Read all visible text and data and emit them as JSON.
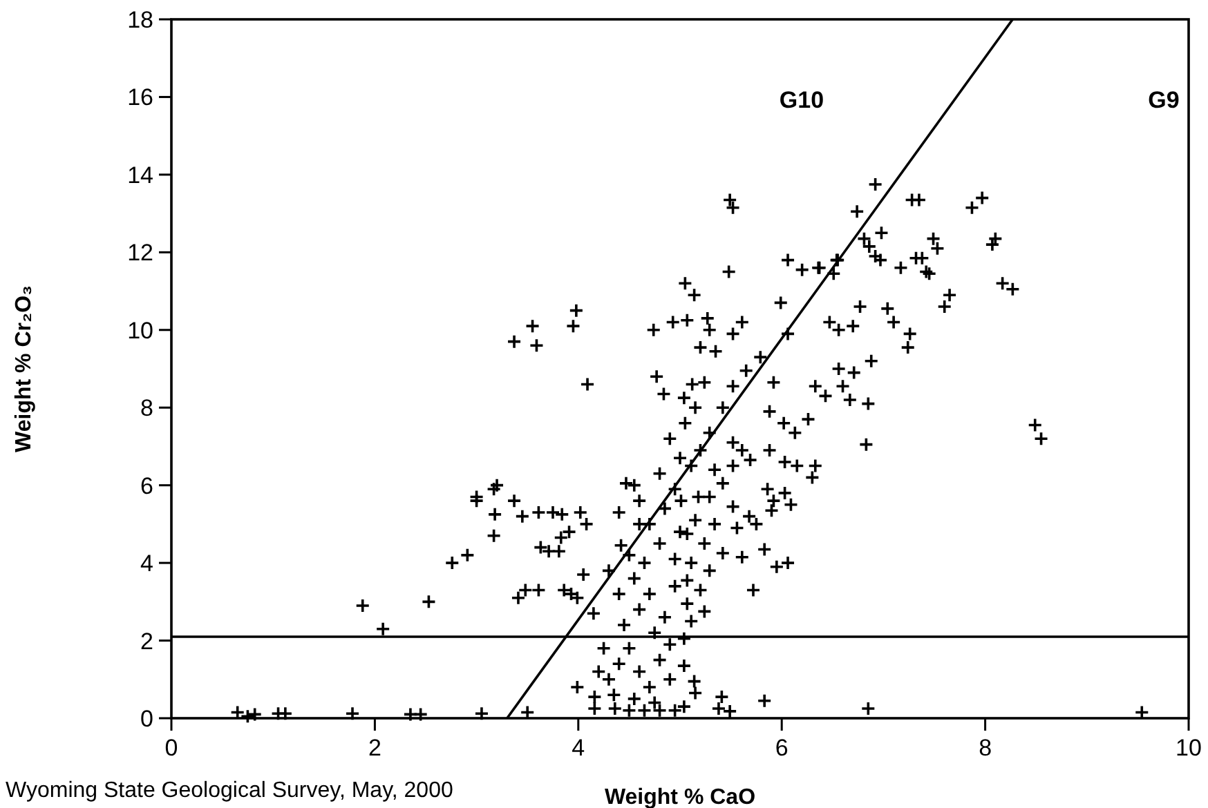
{
  "chart_data": {
    "type": "scatter",
    "xlabel": "Weight % CaO",
    "ylabel": "Weight % Cr₂O₃",
    "xlim": [
      0,
      10
    ],
    "ylim": [
      0,
      18
    ],
    "xticks": [
      0,
      2,
      4,
      6,
      8,
      10
    ],
    "yticks": [
      0,
      2,
      4,
      6,
      8,
      10,
      12,
      14,
      16,
      18
    ],
    "grid": false,
    "marker": "cross",
    "series": [
      {
        "color": "#000000",
        "x": [
          0.65,
          0.75,
          0.82,
          1.05,
          1.12,
          1.78,
          2.35,
          2.45,
          3.05,
          3.5,
          1.88,
          2.08,
          2.53,
          2.76,
          2.91,
          3.0,
          3.17,
          3.2,
          3.18,
          3.17,
          3.37,
          3.55,
          3.59,
          3.98,
          3.95,
          4.09,
          3.0,
          3.37,
          3.45,
          3.61,
          3.75,
          3.84,
          4.02,
          4.08,
          3.91,
          3.83,
          3.63,
          3.71,
          3.81,
          3.41,
          3.48,
          3.61,
          3.86,
          3.93,
          3.99,
          4.42,
          4.47,
          4.6,
          4.74,
          4.93,
          5.07,
          5.27,
          5.29,
          5.05,
          5.14,
          5.48,
          4.77,
          4.84,
          5.04,
          5.12,
          5.24,
          5.2,
          5.35,
          6.06,
          5.95,
          5.83,
          5.72,
          6.83,
          6.85,
          7.24,
          7.26,
          7.1,
          7.04,
          6.77,
          6.7,
          6.56,
          6.47,
          6.88,
          6.71,
          6.56,
          6.6,
          6.67,
          6.43,
          6.33,
          6.26,
          6.13,
          6.33,
          6.3,
          6.15,
          6.03,
          6.03,
          6.09,
          5.92,
          5.9,
          5.75,
          5.68,
          5.86,
          5.69,
          5.88,
          6.02,
          5.88,
          5.92,
          5.79,
          6.06,
          5.99,
          6.2,
          6.06,
          6.36,
          6.54,
          6.92,
          7.17,
          7.32,
          7.45,
          7.6,
          5.61,
          5.52,
          5.42,
          5.52,
          5.65,
          5.29,
          5.52,
          5.61,
          5.2,
          5.11,
          5.34,
          5.52,
          5.42,
          5.18,
          5.29,
          5.01,
          5.52,
          5.15,
          5.34,
          5.56,
          5.07,
          5.24,
          5.42,
          5.61,
          5.11,
          5.29,
          5.07,
          5.2,
          5.07,
          5.24,
          5.11,
          5.04,
          5.04,
          5.14,
          5.15,
          5.41,
          5.38,
          5.49,
          5.83,
          6.85,
          5.04,
          9.54,
          7.35,
          7.87,
          7.97,
          7.49,
          7.53,
          8.1,
          8.07,
          7.38,
          7.42,
          8.17,
          8.27,
          7.65,
          8.49,
          8.55,
          5.49,
          5.52,
          6.92,
          6.74,
          7.28,
          6.98,
          6.81,
          6.86,
          6.97,
          6.37,
          6.55,
          6.51,
          4.16,
          4.36,
          4.5,
          4.65,
          4.8,
          4.95,
          3.99,
          4.16,
          4.3,
          4.4,
          4.5,
          4.6,
          4.7,
          4.8,
          4.9,
          4.55,
          4.75,
          4.35,
          4.2,
          4.25,
          4.45,
          4.6,
          4.4,
          4.55,
          4.7,
          4.85,
          4.95,
          4.3,
          4.5,
          4.65,
          4.8,
          4.95,
          4.7,
          4.85,
          4.6,
          4.95,
          4.8,
          5.0,
          4.75,
          4.9,
          4.15,
          4.05,
          4.9,
          5.05,
          5.15,
          4.55,
          4.4,
          5.0
        ],
        "values": [
          0.15,
          0.05,
          0.1,
          0.12,
          0.12,
          0.12,
          0.1,
          0.1,
          0.12,
          0.15,
          2.9,
          2.3,
          3.0,
          4.0,
          4.2,
          5.7,
          5.9,
          6.0,
          5.25,
          4.7,
          9.7,
          10.1,
          9.6,
          10.5,
          10.1,
          8.6,
          5.6,
          5.6,
          5.2,
          5.3,
          5.3,
          5.25,
          5.3,
          5.0,
          4.8,
          4.65,
          4.4,
          4.3,
          4.3,
          3.1,
          3.3,
          3.3,
          3.3,
          3.2,
          3.1,
          4.45,
          6.05,
          5.0,
          10.0,
          10.2,
          10.25,
          10.3,
          10.0,
          11.2,
          10.9,
          11.5,
          8.8,
          8.35,
          8.25,
          8.6,
          8.65,
          9.55,
          9.45,
          4.0,
          3.9,
          4.35,
          3.3,
          7.05,
          8.1,
          9.55,
          9.9,
          10.2,
          10.55,
          10.6,
          10.1,
          10.0,
          10.2,
          9.2,
          8.9,
          9.0,
          8.55,
          8.2,
          8.3,
          8.55,
          7.7,
          7.35,
          6.5,
          6.2,
          6.5,
          6.6,
          5.8,
          5.5,
          5.6,
          5.35,
          5.0,
          5.2,
          5.9,
          6.65,
          6.9,
          7.6,
          7.9,
          8.65,
          9.3,
          9.9,
          10.7,
          11.55,
          11.8,
          11.6,
          11.8,
          11.9,
          11.6,
          11.85,
          11.45,
          10.6,
          10.2,
          9.9,
          8.0,
          8.55,
          8.95,
          7.35,
          7.1,
          6.9,
          6.9,
          6.5,
          6.4,
          6.5,
          6.05,
          5.7,
          5.7,
          5.6,
          5.45,
          5.1,
          5.0,
          4.9,
          4.75,
          4.5,
          4.25,
          4.15,
          4.0,
          3.8,
          3.55,
          3.3,
          2.95,
          2.75,
          2.5,
          2.05,
          1.35,
          0.95,
          0.65,
          0.55,
          0.25,
          0.18,
          0.45,
          0.25,
          0.3,
          0.15,
          13.35,
          13.15,
          13.4,
          12.35,
          12.1,
          12.35,
          12.2,
          11.85,
          11.5,
          11.2,
          11.05,
          10.9,
          7.55,
          7.2,
          13.35,
          13.15,
          13.75,
          13.05,
          13.35,
          12.5,
          12.35,
          12.15,
          11.8,
          11.6,
          11.8,
          11.45,
          0.25,
          0.25,
          0.2,
          0.2,
          0.2,
          0.2,
          0.8,
          0.55,
          1.0,
          1.4,
          1.8,
          1.2,
          0.8,
          1.5,
          1.0,
          0.5,
          0.4,
          0.6,
          1.2,
          1.8,
          2.4,
          2.8,
          3.2,
          3.6,
          3.2,
          2.6,
          3.4,
          3.8,
          4.2,
          4.0,
          4.5,
          4.1,
          5.0,
          5.4,
          5.6,
          5.9,
          6.3,
          6.7,
          2.2,
          1.9,
          2.7,
          3.7,
          7.2,
          7.6,
          8.0,
          6.0,
          5.3,
          4.8
        ]
      },
      {
        "type": "line",
        "color": "#000000",
        "marker": "none",
        "line_style": "solid",
        "x": [
          3.3,
          8.27
        ],
        "values": [
          0,
          18
        ]
      }
    ],
    "ref_lines": [
      {
        "axis": "y",
        "value": 2.1,
        "color": "#000000",
        "line_style": "solid"
      }
    ],
    "annotations": [
      "G10",
      "G9",
      "Wyoming State Geological Survey, May, 2000"
    ]
  }
}
